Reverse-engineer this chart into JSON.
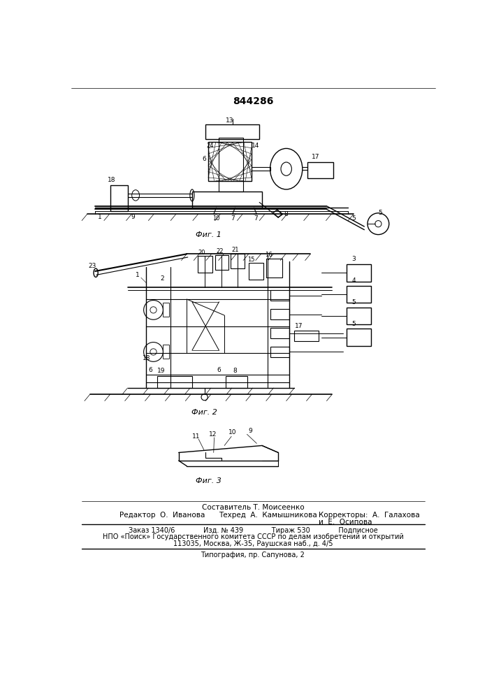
{
  "patent_number": "844286",
  "background_color": "#ffffff",
  "fig1_caption": "Фиг. 1",
  "fig2_caption": "Фиг. 2",
  "fig3_caption": "Фиг. 3",
  "footer_line1": "Составитель Т. Моисеенко",
  "footer_line2_left": "Редактор  О.  Иванова",
  "footer_line2_mid": "Техред  А.  Камышникова",
  "footer_line2_right": "Корректоры:  А.  Галахова",
  "footer_line2_right2": "и  Е.  Осипова",
  "footer_line3": "Заказ 1340/6             Изд. № 439             Тираж 530             Подписное",
  "footer_line4": "НПО «Поиск» Государственного комитета СССР по делам изобретений и открытий",
  "footer_line5": "113035, Москва, Ж-35, Раушская наб., д. 4/5",
  "footer_line6": "Типография, пр. Сапунова, 2"
}
